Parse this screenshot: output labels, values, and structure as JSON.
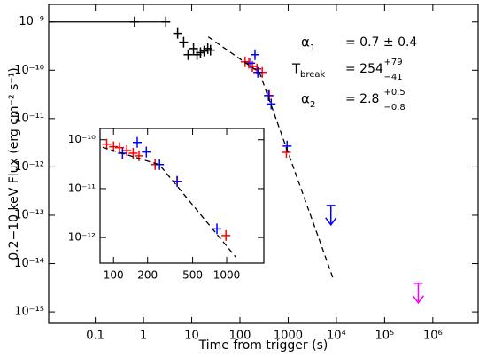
{
  "chart_data": [
    {
      "type": "scatter",
      "log_x": true,
      "log_y": true,
      "xlabel": "Time from trigger (s)",
      "ylabel": "0.2−10 keV Flux (erg cm⁻² s⁻¹)",
      "xlim": [
        0.0108,
        8700000
      ],
      "ylim": [
        5.8e-16,
        2.3e-09
      ],
      "xticks": [
        0.1,
        1,
        10,
        100,
        1000,
        {
          "value": 10000,
          "label": "10⁴"
        },
        {
          "value": 100000,
          "label": "10⁵"
        },
        {
          "value": 1000000,
          "label": "10⁶"
        }
      ],
      "yticks": [
        {
          "value": 1e-09,
          "label": "10⁻⁹"
        },
        {
          "value": 1e-10,
          "label": "10⁻¹⁰"
        },
        {
          "value": 1e-11,
          "label": "10⁻¹¹"
        },
        {
          "value": 1e-12,
          "label": "10⁻¹²"
        },
        {
          "value": 1e-13,
          "label": "10⁻¹³"
        },
        {
          "value": 1e-14,
          "label": "10⁻¹⁴"
        },
        {
          "value": 1e-15,
          "label": "10⁻¹⁵"
        }
      ],
      "series": [
        {
          "style": "line",
          "color": "#000000",
          "x": [
            0.0108,
            3.3
          ],
          "values": [
            1e-09,
            1e-09
          ]
        },
        {
          "style": "cross",
          "color": "#000000",
          "x": [
            0.65,
            2.9,
            5.1,
            6.8,
            8.4,
            10.9,
            12.9,
            15.2,
            18.1,
            21.5,
            24.5
          ],
          "values": [
            1e-09,
            1e-09,
            5.8e-10,
            3.8e-10,
            2.1e-10,
            2.8e-10,
            2.1e-10,
            2.3e-10,
            2.5e-10,
            2.8e-10,
            2.6e-10
          ]
        },
        {
          "style": "cross",
          "color": "#ff0000",
          "x": [
            128,
            153,
            181,
            225,
            290,
            407,
            920
          ],
          "values": [
            1.5e-10,
            1.4e-10,
            1.2e-10,
            1.07e-10,
            9e-11,
            3e-11,
            2e-12
          ]
        },
        {
          "style": "cross",
          "color": "#0000ff",
          "x": [
            167,
            205,
            235,
            390,
            444,
            950
          ],
          "values": [
            1.4e-10,
            2.1e-10,
            9e-11,
            3e-11,
            2e-11,
            2.7e-12
          ]
        },
        {
          "style": "dashed",
          "color": "#000000",
          "x": [
            22,
            254,
            8700
          ],
          "values": [
            4.9e-10,
            9e-11,
            4.7e-15
          ]
        },
        {
          "style": "upper_limit",
          "color": "#0000ff",
          "x": [
            7700
          ],
          "values": [
            1.6e-13
          ]
        },
        {
          "style": "upper_limit",
          "color": "#ff00ff",
          "x": [
            500000
          ],
          "values": [
            3.9e-15
          ]
        }
      ],
      "annotations": [
        {
          "symbol": "α",
          "index": "1",
          "text": "= 0.7 ± 0.4"
        },
        {
          "symbol": "T",
          "index": "break",
          "text": "= 254",
          "upper": "+79",
          "lower": "−41"
        },
        {
          "symbol": "α",
          "index": "2",
          "text": "= 2.8",
          "upper": "+0.5",
          "lower": "−0.8"
        }
      ]
    },
    {
      "type": "scatter",
      "log_x": true,
      "log_y": true,
      "xlim": [
        76,
        2130
      ],
      "ylim": [
        3e-13,
        1.7e-10
      ],
      "xticks": [
        100,
        200,
        500,
        1000
      ],
      "yticks": [
        {
          "value": 1e-10,
          "label": "10⁻¹⁰"
        },
        {
          "value": 1e-11,
          "label": "10⁻¹¹"
        },
        {
          "value": 1e-12,
          "label": "10⁻¹²"
        }
      ],
      "series": [
        {
          "style": "cross",
          "color": "#ff0000",
          "x": [
            87,
            100,
            113,
            131,
            149,
            168,
            233,
            365,
            985
          ],
          "values": [
            8.1e-11,
            7.2e-11,
            6.9e-11,
            6e-11,
            5.3e-11,
            4.7e-11,
            3.1e-11,
            1.4e-11,
            1.1e-12
          ]
        },
        {
          "style": "cross",
          "color": "#0000ff",
          "x": [
            120,
            162,
            195,
            255,
            365,
            820
          ],
          "values": [
            5.3e-11,
            8.8e-11,
            5.6e-11,
            3.1e-11,
            1.4e-11,
            1.5e-12
          ]
        },
        {
          "style": "dashed",
          "color": "#000000",
          "x": [
            80,
            254,
            1200
          ],
          "values": [
            7e-11,
            3.1e-11,
            4e-13
          ]
        }
      ]
    }
  ]
}
